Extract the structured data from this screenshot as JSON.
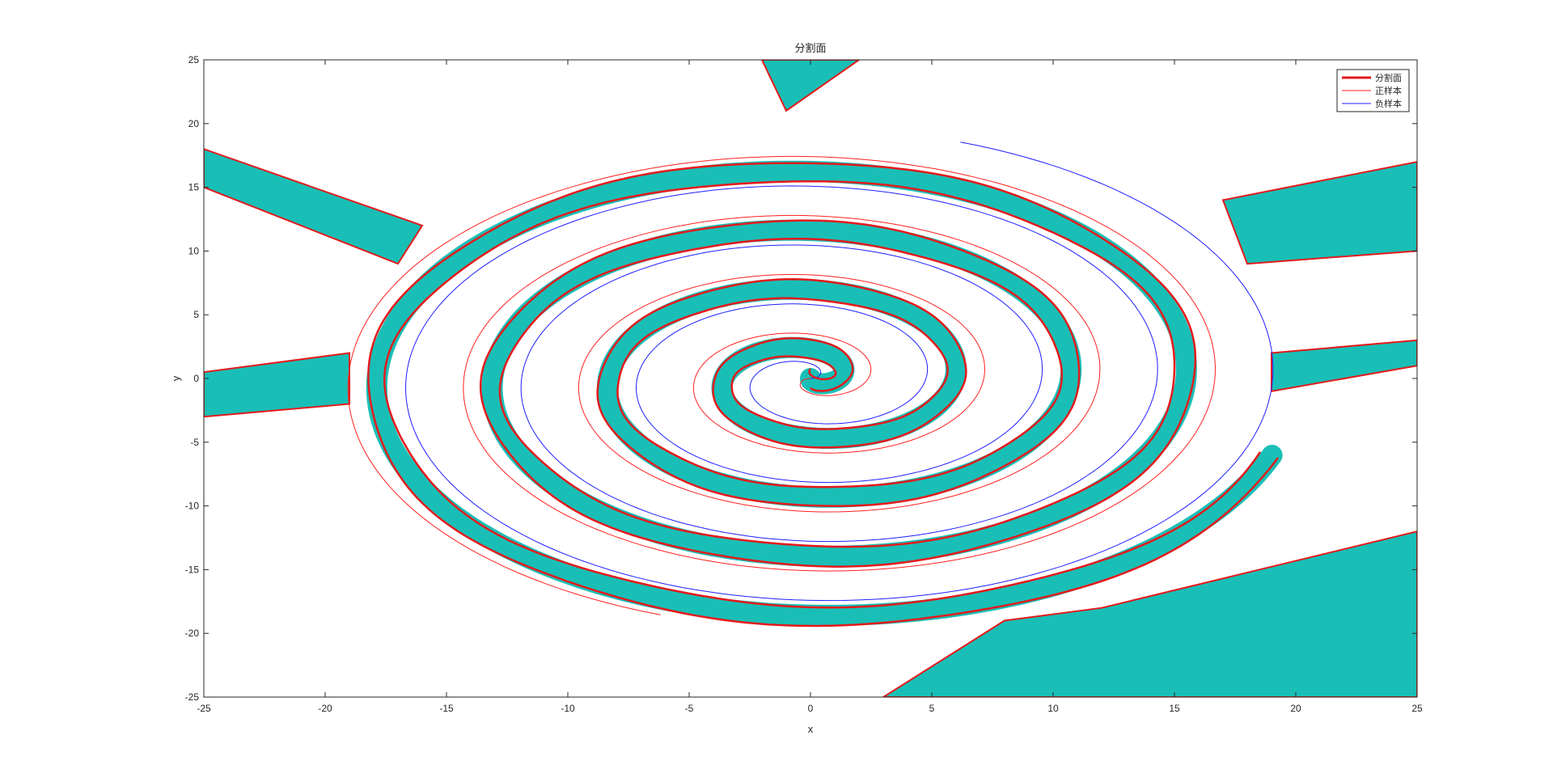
{
  "chart_data": {
    "type": "contour",
    "title": "分割面",
    "xlabel": "x",
    "ylabel": "y",
    "xlim": [
      -25,
      25
    ],
    "ylim": [
      -25,
      25
    ],
    "xticks": [
      -25,
      -20,
      -15,
      -10,
      -5,
      0,
      5,
      10,
      15,
      20,
      25
    ],
    "yticks": [
      -25,
      -20,
      -15,
      -10,
      -5,
      0,
      5,
      10,
      15,
      20,
      25
    ],
    "grid": false,
    "legend": {
      "placement": "top-right",
      "entries": [
        {
          "name": "分割面",
          "color": "#e41a1c",
          "style": "thick-line"
        },
        {
          "name": "正样本",
          "color": "#ff2020",
          "style": "thin-line"
        },
        {
          "name": "负样本",
          "color": "#1f1fff",
          "style": "thin-line"
        }
      ]
    },
    "series": [
      {
        "name": "正样本",
        "kind": "spiral",
        "color": "#ff2020",
        "turns": 4.2,
        "max_radius_x": 20,
        "max_radius_y": 19.5,
        "phase": 3.14159
      },
      {
        "name": "负样本",
        "kind": "spiral",
        "color": "#1f1fff",
        "turns": 4.2,
        "max_radius_x": 20,
        "max_radius_y": 19.5,
        "phase": 0
      }
    ],
    "fill_color": "#19bfb6",
    "boundary_color": "#e41a1c"
  }
}
